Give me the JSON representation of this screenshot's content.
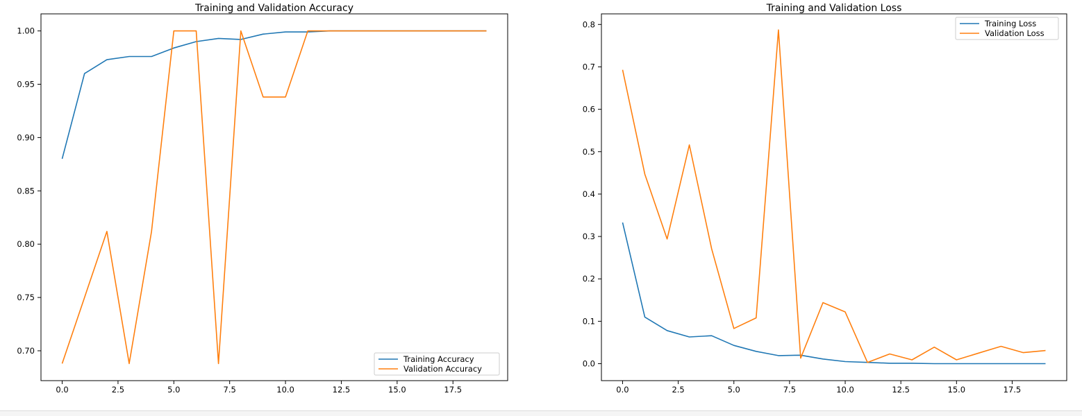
{
  "chart_data": [
    {
      "type": "line",
      "title": "Training and Validation Accuracy",
      "xlabel": "",
      "ylabel": "",
      "xlim": [
        -0.95,
        19.95
      ],
      "ylim": [
        0.672,
        1.016
      ],
      "x_ticks": [
        0.0,
        2.5,
        5.0,
        7.5,
        10.0,
        12.5,
        15.0,
        17.5
      ],
      "x_tick_labels": [
        "0.0",
        "2.5",
        "5.0",
        "7.5",
        "10.0",
        "12.5",
        "15.0",
        "17.5"
      ],
      "y_ticks": [
        0.7,
        0.75,
        0.8,
        0.85,
        0.9,
        0.95,
        1.0
      ],
      "y_tick_labels": [
        "0.70",
        "0.75",
        "0.80",
        "0.85",
        "0.90",
        "0.95",
        "1.00"
      ],
      "grid": false,
      "legend_position": "lower-right",
      "x": [
        0,
        1,
        2,
        3,
        4,
        5,
        6,
        7,
        8,
        9,
        10,
        11,
        12,
        13,
        14,
        15,
        16,
        17,
        18,
        19
      ],
      "series": [
        {
          "name": "Training Accuracy",
          "color": "#1f77b4",
          "values": [
            0.88,
            0.96,
            0.973,
            0.976,
            0.976,
            0.984,
            0.99,
            0.993,
            0.992,
            0.997,
            0.999,
            0.999,
            1.0,
            1.0,
            1.0,
            1.0,
            1.0,
            1.0,
            1.0,
            1.0
          ]
        },
        {
          "name": "Validation Accuracy",
          "color": "#ff7f0e",
          "values": [
            0.688,
            0.75,
            0.812,
            0.688,
            0.812,
            1.0,
            1.0,
            0.688,
            1.0,
            0.938,
            0.938,
            1.0,
            1.0,
            1.0,
            1.0,
            1.0,
            1.0,
            1.0,
            1.0,
            1.0
          ]
        }
      ]
    },
    {
      "type": "line",
      "title": "Training and Validation Loss",
      "xlabel": "",
      "ylabel": "",
      "xlim": [
        -0.95,
        19.95
      ],
      "ylim": [
        -0.04,
        0.825
      ],
      "x_ticks": [
        0.0,
        2.5,
        5.0,
        7.5,
        10.0,
        12.5,
        15.0,
        17.5
      ],
      "x_tick_labels": [
        "0.0",
        "2.5",
        "5.0",
        "7.5",
        "10.0",
        "12.5",
        "15.0",
        "17.5"
      ],
      "y_ticks": [
        0.0,
        0.1,
        0.2,
        0.3,
        0.4,
        0.5,
        0.6,
        0.7,
        0.8
      ],
      "y_tick_labels": [
        "0.0",
        "0.1",
        "0.2",
        "0.3",
        "0.4",
        "0.5",
        "0.6",
        "0.7",
        "0.8"
      ],
      "grid": false,
      "legend_position": "upper-right",
      "x": [
        0,
        1,
        2,
        3,
        4,
        5,
        6,
        7,
        8,
        9,
        10,
        11,
        12,
        13,
        14,
        15,
        16,
        17,
        18,
        19
      ],
      "series": [
        {
          "name": "Training Loss",
          "color": "#1f77b4",
          "values": [
            0.333,
            0.11,
            0.078,
            0.063,
            0.066,
            0.043,
            0.029,
            0.019,
            0.02,
            0.011,
            0.005,
            0.003,
            0.001,
            0.001,
            0.0,
            0.0,
            0.0,
            0.0,
            0.0,
            0.0
          ]
        },
        {
          "name": "Validation Loss",
          "color": "#ff7f0e",
          "values": [
            0.693,
            0.447,
            0.294,
            0.516,
            0.271,
            0.083,
            0.108,
            0.787,
            0.013,
            0.144,
            0.122,
            0.003,
            0.023,
            0.009,
            0.039,
            0.009,
            0.025,
            0.041,
            0.026,
            0.031
          ]
        }
      ]
    }
  ]
}
